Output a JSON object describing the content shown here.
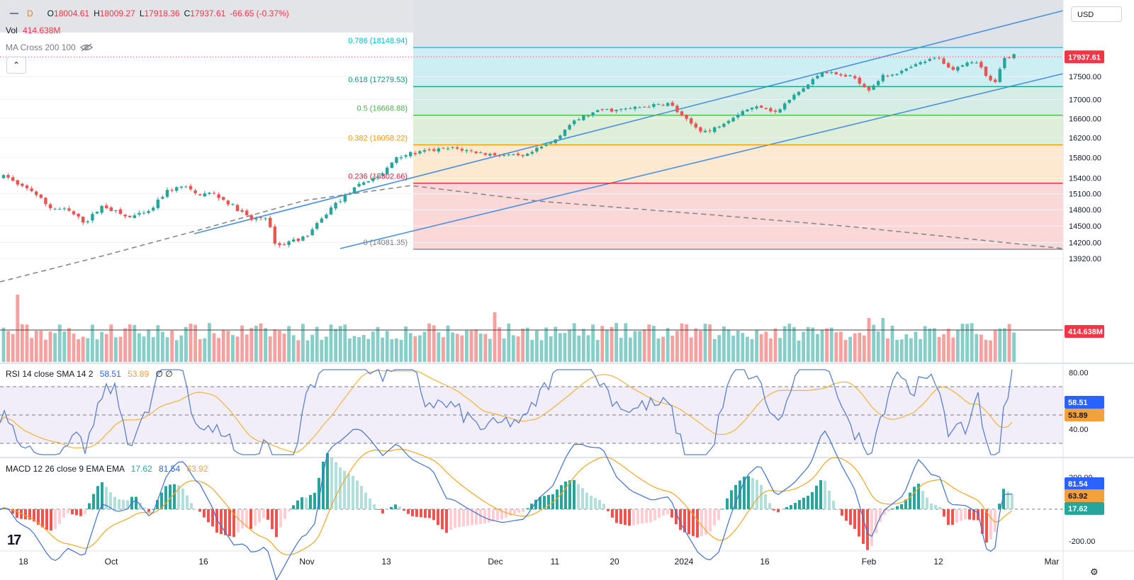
{
  "header": {
    "interval": "D",
    "open_label": "O",
    "open": "18004.61",
    "high_label": "H",
    "high": "18009.27",
    "low_label": "L",
    "low": "17918.36",
    "close_label": "C",
    "close": "17937.61",
    "change": "-66.65 (-0.37%)",
    "vol_label": "Vol",
    "vol_value": "414.638M",
    "ma_label": "MA Cross 200 100",
    "collapse_glyph": "⌃",
    "currency": "USD"
  },
  "price_axis": {
    "ticks": [
      "17500.00",
      "17000.00",
      "16600.00",
      "16200.00",
      "15800.00",
      "15400.00",
      "15100.00",
      "14800.00",
      "14500.00",
      "14200.00",
      "13920.00"
    ],
    "last_price_badge": "17937.61",
    "volume_badge": "414.638M"
  },
  "fib": {
    "levels": [
      {
        "label": "0.786 (18148.94)",
        "price": 18148.94,
        "color": "#00bcd4",
        "fill": "#cdeff4"
      },
      {
        "label": "0.618 (17279.53)",
        "price": 17279.53,
        "color": "#089981",
        "fill": "#d6ede6"
      },
      {
        "label": "0.5 (16668.88)",
        "price": 16668.88,
        "color": "#4caf50",
        "fill": "#deeed8"
      },
      {
        "label": "0.382 (16058.22)",
        "price": 16058.22,
        "color": "#ff9800",
        "fill": "#fde9cf"
      },
      {
        "label": "0.236 (15302.66)",
        "price": 15302.66,
        "color": "#e91e3c",
        "fill": "#fbd8d8"
      },
      {
        "label": "0 (14081.35)",
        "price": 14081.35,
        "color": "#787b86",
        "fill": null
      }
    ]
  },
  "rsi": {
    "legend": "RSI 14 close SMA 14 2",
    "value": "58.51",
    "sma": "53.89",
    "extra": "∅ ∅",
    "axis_ticks": [
      "80.00",
      "40.00"
    ],
    "upper": 70,
    "lower": 30
  },
  "macd": {
    "legend": "MACD 12 26 close 9 EMA EMA",
    "hist": "17.62",
    "macd": "81.54",
    "signal": "63.92",
    "axis_ticks": [
      "200.00",
      "-200.00"
    ]
  },
  "time_axis": {
    "labels": [
      "18",
      "Oct",
      "16",
      "Nov",
      "13",
      "Dec",
      "11",
      "20",
      "2024",
      "16",
      "Feb",
      "12",
      "Mar"
    ]
  },
  "colors": {
    "up": "#26a69a",
    "down": "#ef5350",
    "channel": "#4a90e2",
    "rsi_line": "#5b7fd6",
    "rsi_sma": "#f2b33d",
    "macd_line": "#3e6fd9",
    "signal_line": "#f5a623"
  },
  "chart_data": {
    "type": "candlestick",
    "y_scale": "log",
    "price_range": [
      13800,
      18300
    ],
    "last_close": 17937.61,
    "volume_last": "414.638M"
  }
}
